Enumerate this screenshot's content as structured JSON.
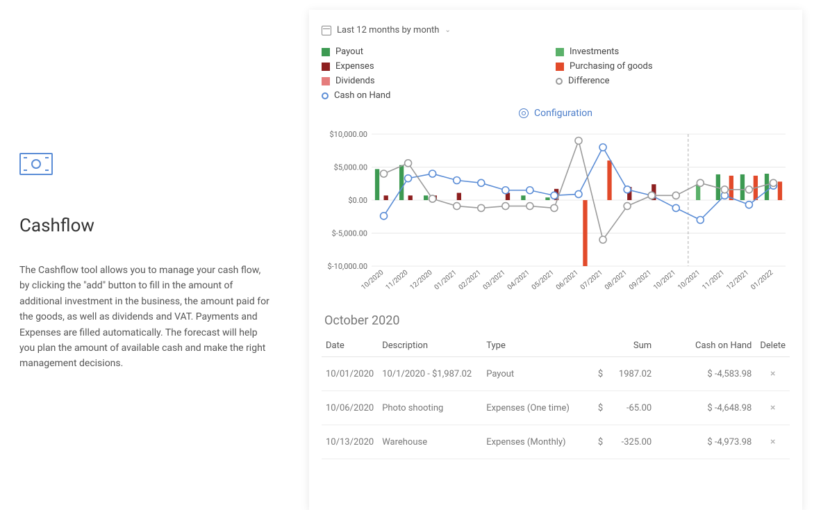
{
  "left": {
    "title": "Cashflow",
    "description": "The Cashflow tool allows you to manage your cash flow, by clicking the \"add\" button to fill in the amount of additional investment in the business, the amount paid for the goods, as well as dividends and VAT. Payments and Expenses are filled automatically. The forecast will help you plan the amount of available cash and make the right management decisions."
  },
  "range_label": "Last 12 months by month",
  "configuration_label": "Configuration",
  "legend": {
    "payout": {
      "label": "Payout",
      "type": "square",
      "color": "#3d9a52"
    },
    "expenses": {
      "label": "Expenses",
      "type": "square",
      "color": "#8d1f1f"
    },
    "dividends": {
      "label": "Dividends",
      "type": "square",
      "color": "#e57c7c"
    },
    "cash": {
      "label": "Cash on Hand",
      "type": "round",
      "color": "#5b8dd6"
    },
    "investments": {
      "label": "Investments",
      "type": "square",
      "color": "#5bb16a"
    },
    "purchasing": {
      "label": "Purchasing of goods",
      "type": "square",
      "color": "#e24a2a"
    },
    "difference": {
      "label": "Difference",
      "type": "round",
      "color": "#9b9b9b"
    }
  },
  "chart": {
    "type": "bar+line",
    "background_color": "#ffffff",
    "grid_color": "#e8e8e8",
    "divider_color": "#bbbbbb",
    "ylim": [
      -10000,
      10000
    ],
    "ytick_step": 5000,
    "ytick_labels": [
      "$-10,000.00",
      "$-5,000.00",
      "$0.00",
      "$5,000.00",
      "$10,000.00"
    ],
    "categories": [
      "10/2020",
      "11/2020",
      "12/2020",
      "01/2021",
      "02/2021",
      "03/2021",
      "04/2021",
      "05/2021",
      "06/2021",
      "07/2021",
      "08/2021",
      "09/2021",
      "10/2021",
      "10/2021",
      "11/2021",
      "12/2021",
      "01/2022"
    ],
    "divider_after_index": 12,
    "bar_width": 0.18,
    "bars": {
      "payout": {
        "color": "#3d9a52",
        "values": [
          4700,
          5300,
          700,
          0,
          0,
          0,
          700,
          400,
          0,
          0,
          0,
          0,
          0,
          0,
          3900,
          3900,
          4000
        ]
      },
      "investments": {
        "color": "#5bb16a",
        "values": [
          0,
          0,
          0,
          0,
          0,
          0,
          0,
          0,
          0,
          0,
          0,
          0,
          0,
          2400,
          0,
          0,
          0
        ]
      },
      "expenses": {
        "color": "#8d1f1f",
        "values": [
          700,
          700,
          700,
          1100,
          0,
          1100,
          0,
          1700,
          0,
          0,
          2000,
          2400,
          0,
          0,
          0,
          0,
          0
        ]
      },
      "purchasing": {
        "color": "#e24a2a",
        "values": [
          0,
          0,
          0,
          0,
          0,
          0,
          0,
          0,
          -10000,
          6000,
          0,
          0,
          0,
          0,
          3700,
          3700,
          2800
        ]
      }
    },
    "lines": {
      "cash": {
        "color": "#5b8dd6",
        "marker": "circle",
        "marker_size": 5,
        "line_width": 1.6,
        "values": [
          -2400,
          3300,
          4000,
          3000,
          2600,
          1500,
          1500,
          700,
          900,
          8000,
          1600,
          700,
          -1200,
          -3000,
          700,
          -700,
          2200
        ]
      },
      "difference": {
        "color": "#9b9b9b",
        "marker": "circle",
        "marker_size": 5,
        "line_width": 1.6,
        "values": [
          4000,
          5600,
          200,
          -900,
          -1200,
          -900,
          -900,
          -1200,
          9000,
          -6000,
          -900,
          700,
          700,
          2600,
          1600,
          1600,
          2600
        ]
      }
    }
  },
  "table": {
    "title": "October 2020",
    "columns": [
      "Date",
      "Description",
      "Type",
      "Sum",
      "Cash on Hand",
      "Delete"
    ],
    "currency_symbol": "$",
    "rows": [
      {
        "date": "10/01/2020",
        "description": "10/1/2020 - $1,987.02",
        "type": "Payout",
        "sum": "1987.02",
        "cash": "-4,583.98"
      },
      {
        "date": "10/06/2020",
        "description": "Photo shooting",
        "type": "Expenses (One time)",
        "sum": "-65.00",
        "cash": "-4,648.98"
      },
      {
        "date": "10/13/2020",
        "description": "Warehouse",
        "type": "Expenses (Monthly)",
        "sum": "-325.00",
        "cash": "-4,973.98"
      }
    ]
  }
}
